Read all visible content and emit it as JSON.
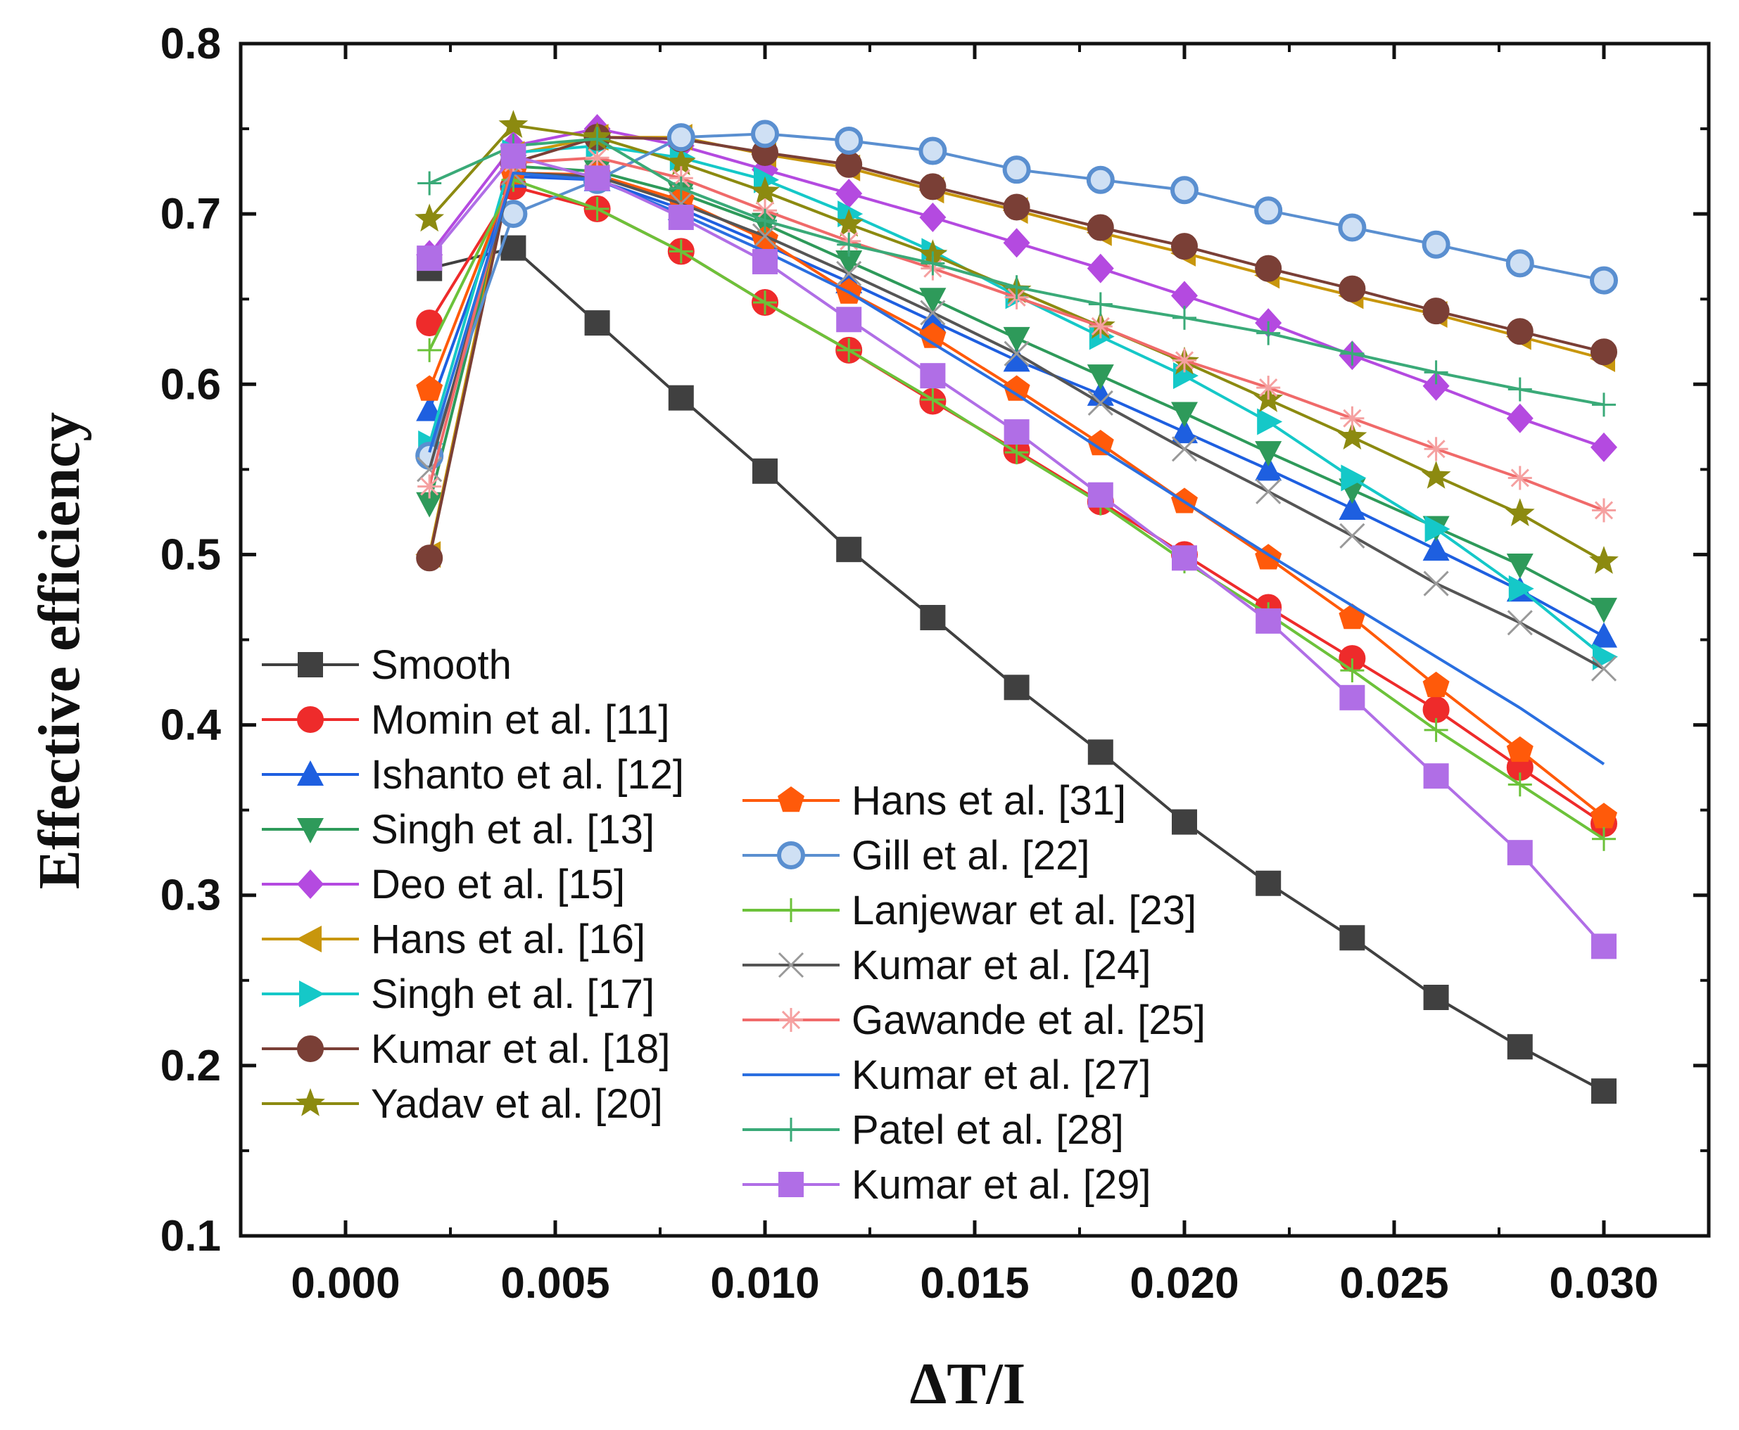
{
  "chart_data": {
    "type": "line",
    "title": "",
    "xlabel": "ΔT/I",
    "ylabel": "Effective efficiency",
    "xlim": [
      -0.0025,
      0.0325
    ],
    "ylim": [
      0.1,
      0.8
    ],
    "xticks": [
      "0.000",
      "0.005",
      "0.010",
      "0.015",
      "0.020",
      "0.025",
      "0.030"
    ],
    "yticks": [
      "0.1",
      "0.2",
      "0.3",
      "0.4",
      "0.5",
      "0.6",
      "0.7",
      "0.8"
    ],
    "x": [
      0.002,
      0.004,
      0.006,
      0.008,
      0.01,
      0.012,
      0.014,
      0.016,
      0.018,
      0.02,
      0.022,
      0.024,
      0.026,
      0.028,
      0.03
    ],
    "series": [
      {
        "name": "Smooth",
        "color": "#404040",
        "marker": "square",
        "values": [
          0.668,
          0.68,
          0.636,
          0.592,
          0.549,
          0.503,
          0.463,
          0.422,
          0.384,
          0.343,
          0.307,
          0.275,
          0.24,
          0.211,
          0.185
        ]
      },
      {
        "name": "Momin et al. [11]",
        "color": "#ee2b2b",
        "marker": "circle",
        "values": [
          0.636,
          0.716,
          0.703,
          0.678,
          0.648,
          0.62,
          0.59,
          0.561,
          0.531,
          0.5,
          0.469,
          0.439,
          0.409,
          0.375,
          0.342
        ]
      },
      {
        "name": "Ishanto et al. [12]",
        "color": "#1e5fe0",
        "marker": "triangle-up",
        "values": [
          0.585,
          0.722,
          0.72,
          0.703,
          0.682,
          0.66,
          0.637,
          0.614,
          0.594,
          0.572,
          0.55,
          0.527,
          0.503,
          0.479,
          0.452
        ]
      },
      {
        "name": "Singh et al. [13]",
        "color": "#2e9a5a",
        "marker": "triangle-down",
        "values": [
          0.53,
          0.728,
          0.725,
          0.712,
          0.694,
          0.672,
          0.65,
          0.627,
          0.605,
          0.583,
          0.56,
          0.538,
          0.516,
          0.494,
          0.468
        ]
      },
      {
        "name": "Deo et al. [15]",
        "color": "#b44ae0",
        "marker": "diamond",
        "values": [
          0.676,
          0.74,
          0.75,
          0.74,
          0.726,
          0.712,
          0.698,
          0.683,
          0.668,
          0.652,
          0.636,
          0.617,
          0.599,
          0.58,
          0.563
        ]
      },
      {
        "name": "Hans et al. [16]",
        "color": "#c8960c",
        "marker": "triangle-left",
        "values": [
          0.5,
          0.735,
          0.745,
          0.745,
          0.735,
          0.727,
          0.714,
          0.702,
          0.689,
          0.677,
          0.664,
          0.652,
          0.641,
          0.628,
          0.615
        ]
      },
      {
        "name": "Singh et al. [17]",
        "color": "#15c8c8",
        "marker": "triangle-right",
        "values": [
          0.565,
          0.736,
          0.74,
          0.733,
          0.72,
          0.7,
          0.678,
          0.652,
          0.628,
          0.605,
          0.578,
          0.545,
          0.515,
          0.48,
          0.44
        ]
      },
      {
        "name": "Kumar et al. [18]",
        "color": "#7a3f36",
        "marker": "circle",
        "values": [
          0.498,
          0.73,
          0.745,
          0.744,
          0.736,
          0.729,
          0.716,
          0.704,
          0.692,
          0.681,
          0.668,
          0.656,
          0.643,
          0.631,
          0.619
        ]
      },
      {
        "name": "Yadav et al. [20]",
        "color": "#8c8a10",
        "marker": "star",
        "values": [
          0.697,
          0.752,
          0.745,
          0.73,
          0.713,
          0.694,
          0.676,
          0.655,
          0.634,
          0.613,
          0.591,
          0.569,
          0.546,
          0.524,
          0.496
        ]
      },
      {
        "name": "Hans et al. [31]",
        "color": "#ff5a0a",
        "marker": "pentagon",
        "values": [
          0.597,
          0.724,
          0.723,
          0.708,
          0.685,
          0.654,
          0.628,
          0.597,
          0.565,
          0.531,
          0.498,
          0.463,
          0.423,
          0.385,
          0.346
        ]
      },
      {
        "name": "Gill et al. [22]",
        "color": "#5a8fd0",
        "marker": "circle-open",
        "values": [
          0.558,
          0.7,
          0.72,
          0.745,
          0.747,
          0.743,
          0.737,
          0.726,
          0.72,
          0.714,
          0.702,
          0.692,
          0.682,
          0.671,
          0.661
        ]
      },
      {
        "name": "Lanjewar et al. [23]",
        "color": "#6cc23a",
        "marker": "plus",
        "values": [
          0.62,
          0.72,
          0.703,
          0.678,
          0.648,
          0.62,
          0.591,
          0.56,
          0.53,
          0.496,
          0.465,
          0.432,
          0.397,
          0.365,
          0.333
        ]
      },
      {
        "name": "Kumar et al. [24]",
        "color": "#555555",
        "marker": "x",
        "values": [
          0.55,
          0.724,
          0.722,
          0.706,
          0.687,
          0.665,
          0.642,
          0.618,
          0.589,
          0.562,
          0.537,
          0.511,
          0.483,
          0.46,
          0.433
        ]
      },
      {
        "name": "Gawande et al. [25]",
        "color": "#f06a6a",
        "marker": "asterisk",
        "values": [
          0.54,
          0.73,
          0.733,
          0.721,
          0.702,
          0.684,
          0.668,
          0.651,
          0.634,
          0.614,
          0.598,
          0.58,
          0.562,
          0.545,
          0.526
        ]
      },
      {
        "name": "Kumar et al. [27]",
        "color": "#2a6fe0",
        "marker": "none",
        "values": [
          0.56,
          0.724,
          0.72,
          0.7,
          0.678,
          0.654,
          0.624,
          0.594,
          0.562,
          0.531,
          0.5,
          0.47,
          0.44,
          0.41,
          0.377
        ]
      },
      {
        "name": "Patel et al. [28]",
        "color": "#3aaa78",
        "marker": "plus",
        "values": [
          0.718,
          0.74,
          0.744,
          0.715,
          0.696,
          0.682,
          0.671,
          0.657,
          0.647,
          0.639,
          0.63,
          0.618,
          0.607,
          0.597,
          0.588
        ]
      },
      {
        "name": "Kumar et al. [29]",
        "color": "#b06ee6",
        "marker": "square",
        "values": [
          0.674,
          0.734,
          0.721,
          0.698,
          0.672,
          0.638,
          0.605,
          0.572,
          0.535,
          0.498,
          0.461,
          0.416,
          0.37,
          0.325,
          0.27
        ]
      }
    ],
    "legend": {
      "placement": "bottom-left",
      "columns": 2
    }
  }
}
